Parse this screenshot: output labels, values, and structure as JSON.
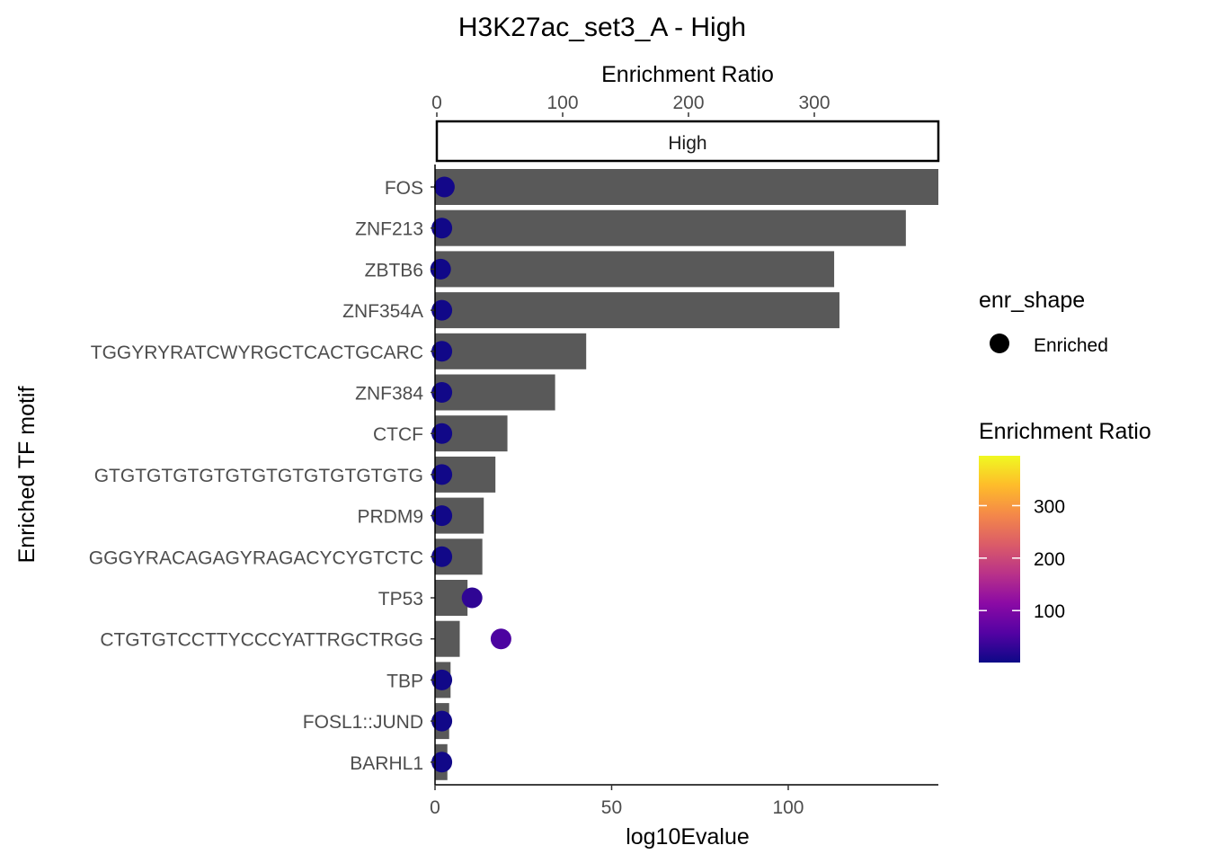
{
  "chart_data": {
    "type": "bar",
    "title": "H3K27ac_set3_A - High",
    "facet_label": "High",
    "xlabel": "log10Evalue",
    "ylabel": "Enriched TF motif",
    "top_axis_label": "Enrichment Ratio",
    "xlim": [
      0,
      142.5
    ],
    "xticks": [
      0,
      50,
      100
    ],
    "top_xlim": [
      0,
      400
    ],
    "top_xticks": [
      0,
      100,
      200,
      300
    ],
    "categories": [
      "FOS",
      "ZNF213",
      "ZBTB6",
      "ZNF354A",
      "TGGYRYRATCWYRGCTCACTGCARC",
      "ZNF384",
      "CTCF",
      "GTGTGTGTGTGTGTGTGTGTGTGTG",
      "PRDM9",
      "GGGYRACAGAGYRAGACYCYGTCTC",
      "TP53",
      "CTGTGTCCTTYCCCYATTRGCTRGG",
      "TBP",
      "FOSL1::JUND",
      "BARHL1"
    ],
    "bar_values_log10Evalue": [
      142.5,
      133.3,
      113.0,
      114.5,
      42.8,
      34.0,
      20.5,
      17.1,
      13.8,
      13.4,
      9.2,
      7.0,
      4.4,
      4.0,
      3.5
    ],
    "point_values_enrichment_ratio": [
      6,
      4,
      3,
      4,
      4,
      4,
      4,
      4,
      4,
      4,
      28,
      51,
      4,
      4,
      4
    ],
    "bar_color": "#595959",
    "legend_shape": {
      "title": "enr_shape",
      "label": "Enriched"
    },
    "legend_color": {
      "title": "Enrichment Ratio",
      "ticks": [
        100,
        200,
        300
      ],
      "range": [
        1,
        395
      ],
      "colors": [
        "#0d0887",
        "#5402a3",
        "#8b0aa5",
        "#b93289",
        "#db5c68",
        "#f48849",
        "#febc2a",
        "#f0f921"
      ]
    }
  }
}
